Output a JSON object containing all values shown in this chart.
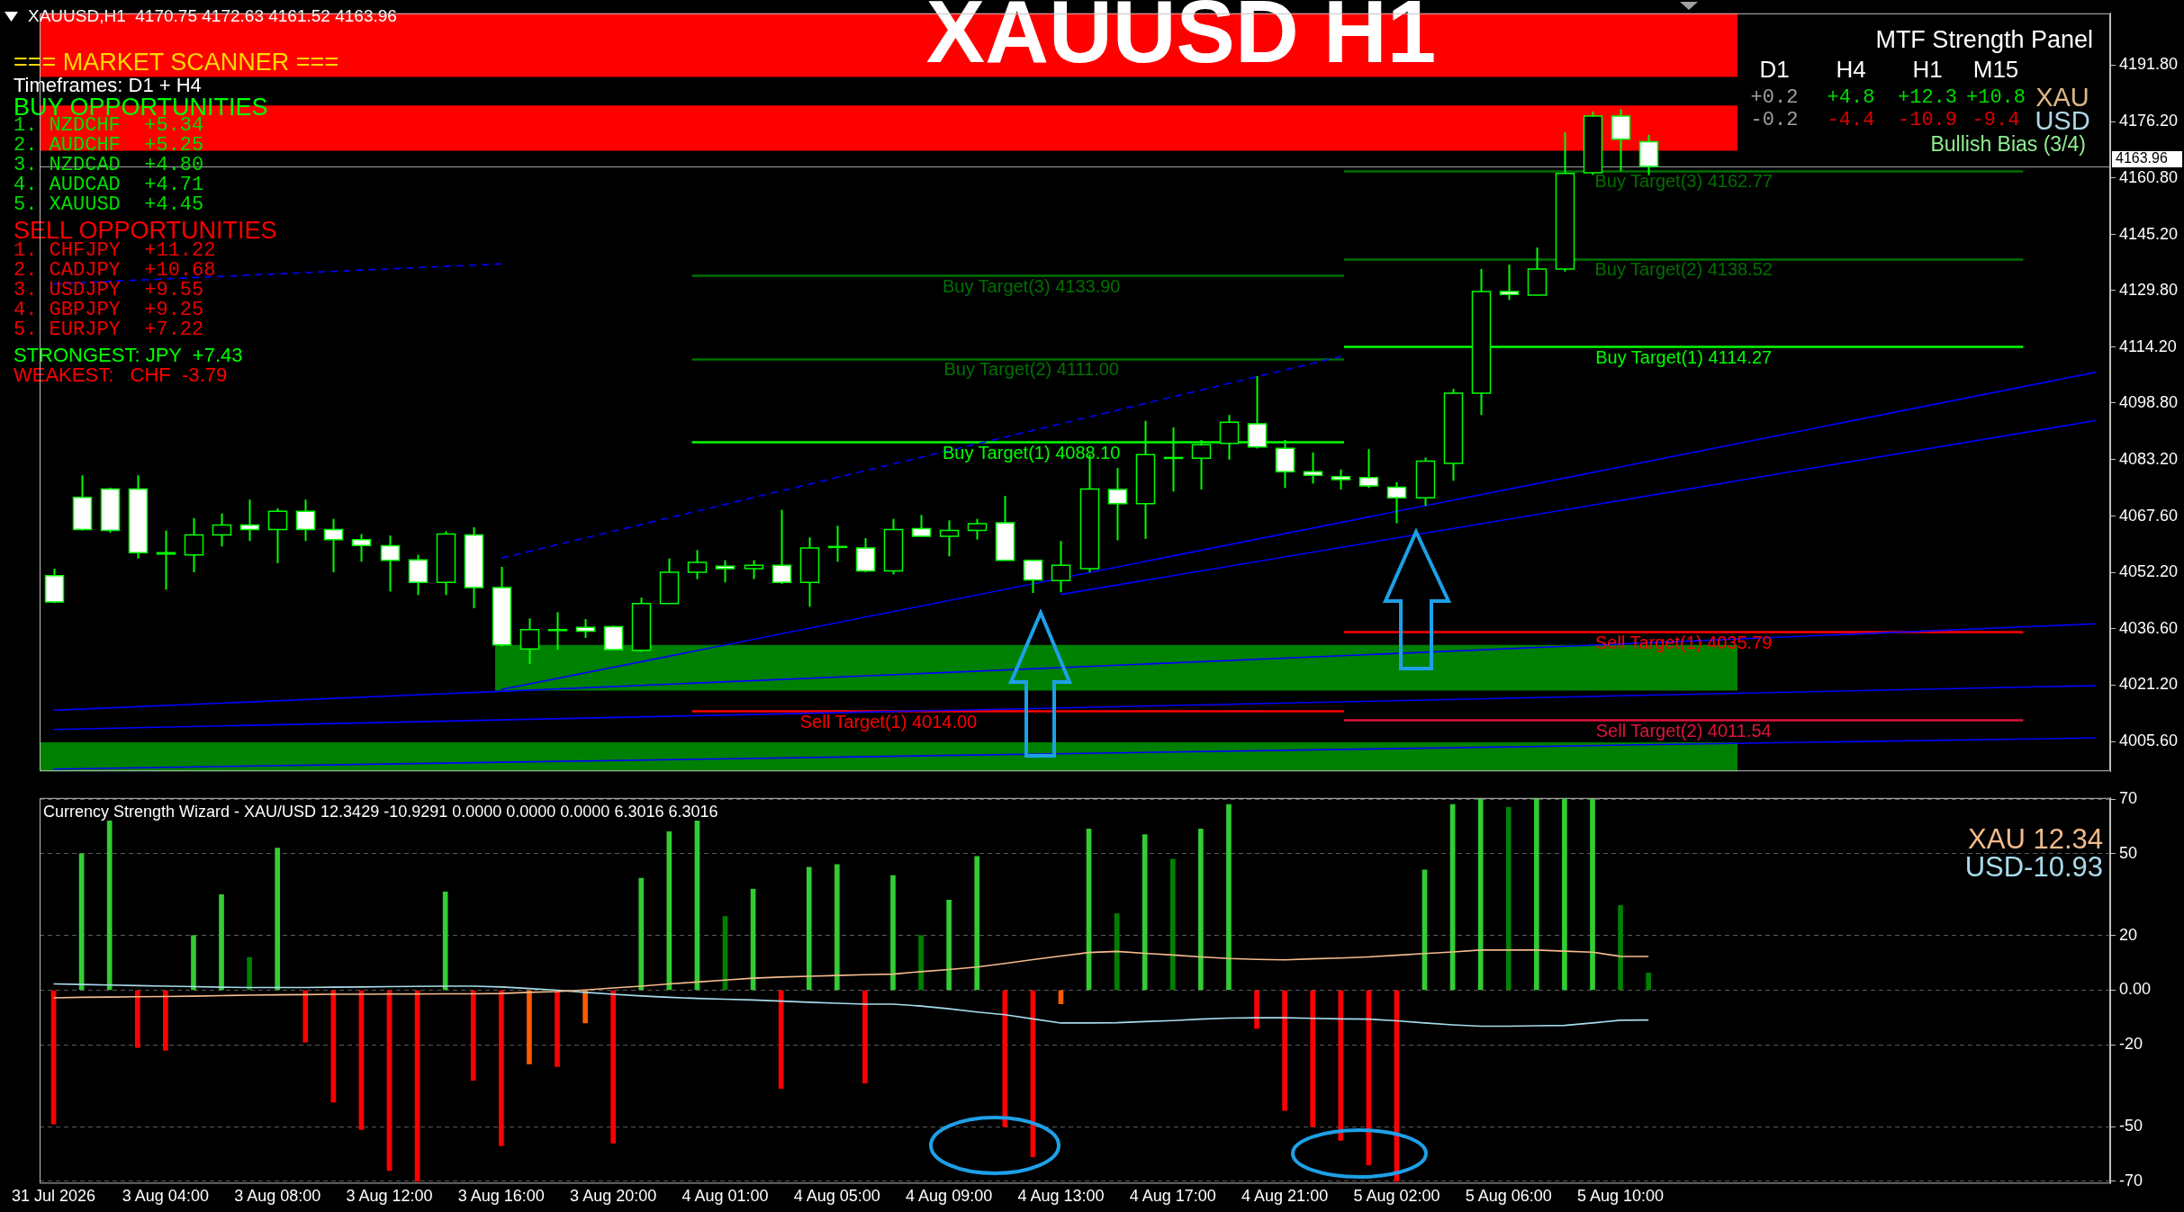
{
  "chart_data": [
    {
      "type": "candlestick",
      "title": "XAUUSD H1",
      "categories": [
        null,
        null,
        null,
        null,
        null,
        null,
        null,
        null,
        null,
        null,
        null,
        null,
        null,
        null,
        null,
        null,
        null,
        null,
        null,
        null,
        null,
        null,
        null,
        null,
        null,
        null,
        null,
        null,
        null,
        null,
        null,
        null,
        null,
        null,
        null,
        null,
        null,
        null,
        null,
        null,
        null,
        null,
        null,
        null,
        null,
        null,
        null,
        null,
        null,
        null,
        null,
        null,
        null,
        null,
        null,
        null,
        null,
        null,
        null,
        null,
        null,
        null,
        null,
        null,
        null,
        null,
        null,
        null,
        null,
        null,
        null,
        null,
        null,
        null
      ],
      "ohlc": [
        [
          4051.3,
          4053.2,
          4043.7,
          4044.0
        ],
        [
          4072.8,
          4078.9,
          4063.7,
          4064.0
        ],
        [
          4075.1,
          4075.5,
          4063.1,
          4063.7
        ],
        [
          4075.1,
          4078.9,
          4056.0,
          4057.6
        ],
        [
          4057.6,
          4063.7,
          4047.4,
          4057.2
        ],
        [
          4057.0,
          4067.1,
          4052.2,
          4062.5
        ],
        [
          4062.5,
          4068.4,
          4059.3,
          4065.2
        ],
        [
          4065.2,
          4072.2,
          4060.8,
          4064.0
        ],
        [
          4064.0,
          4069.8,
          4054.7,
          4069.0
        ],
        [
          4069.0,
          4072.2,
          4060.8,
          4064.0
        ],
        [
          4064.0,
          4066.9,
          4052.2,
          4061.2
        ],
        [
          4061.2,
          4062.7,
          4055.1,
          4059.6
        ],
        [
          4059.5,
          4062.3,
          4046.9,
          4055.5
        ],
        [
          4055.6,
          4057.0,
          4045.9,
          4049.4
        ],
        [
          4049.4,
          4063.5,
          4045.9,
          4062.7
        ],
        [
          4062.5,
          4064.6,
          4042.3,
          4048.0
        ],
        [
          4048.0,
          4053.7,
          4031.8,
          4032.2
        ],
        [
          4031.1,
          4039.5,
          4026.9,
          4036.4
        ],
        [
          4036.4,
          4041.2,
          4030.9,
          4036.2
        ],
        [
          4037.0,
          4039.3,
          4034.1,
          4036.0
        ],
        [
          4037.2,
          4037.5,
          4030.7,
          4030.9
        ],
        [
          4030.7,
          4045.2,
          4030.3,
          4043.6
        ],
        [
          4043.6,
          4056.0,
          4043.6,
          4052.2
        ],
        [
          4052.2,
          4058.3,
          4050.3,
          4054.9
        ],
        [
          4053.9,
          4055.5,
          4049.4,
          4053.2
        ],
        [
          4053.2,
          4055.5,
          4050.3,
          4054.1
        ],
        [
          4054.1,
          4069.4,
          4049.0,
          4049.4
        ],
        [
          4049.4,
          4061.8,
          4042.7,
          4058.9
        ],
        [
          4059.3,
          4065.0,
          4055.1,
          4059.1
        ],
        [
          4058.9,
          4061.6,
          4052.2,
          4052.6
        ],
        [
          4052.6,
          4066.9,
          4051.6,
          4064.0
        ],
        [
          4064.2,
          4068.0,
          4062.1,
          4062.1
        ],
        [
          4062.1,
          4066.5,
          4056.6,
          4063.7
        ],
        [
          4063.7,
          4066.9,
          4061.2,
          4065.6
        ],
        [
          4065.8,
          4073.2,
          4055.5,
          4055.5
        ],
        [
          4055.5,
          4055.5,
          4046.5,
          4050.1
        ],
        [
          4049.9,
          4060.8,
          4046.7,
          4054.1
        ],
        [
          4053.2,
          4084.6,
          4052.2,
          4075.1
        ],
        [
          4075.0,
          4080.9,
          4061.0,
          4071.1
        ],
        [
          4071.1,
          4093.9,
          4061.4,
          4084.6
        ],
        [
          4083.8,
          4092.1,
          4074.4,
          4083.6
        ],
        [
          4083.6,
          4088.6,
          4075.0,
          4087.3
        ],
        [
          4087.7,
          4095.5,
          4083.2,
          4093.5
        ],
        [
          4093.1,
          4106.2,
          4086.3,
          4086.7
        ],
        [
          4086.3,
          4088.6,
          4075.4,
          4079.9
        ],
        [
          4079.9,
          4085.2,
          4076.6,
          4078.9
        ],
        [
          4078.5,
          4080.5,
          4075.0,
          4077.7
        ],
        [
          4078.3,
          4086.1,
          4075.4,
          4076.0
        ],
        [
          4075.6,
          4077.0,
          4065.7,
          4072.7
        ],
        [
          4072.7,
          4083.8,
          4070.5,
          4082.8
        ],
        [
          4082.2,
          4102.7,
          4077.4,
          4101.5
        ],
        [
          4101.5,
          4135.7,
          4095.5,
          4129.5
        ],
        [
          4129.5,
          4136.9,
          4127.2,
          4128.7
        ],
        [
          4128.5,
          4141.6,
          4128.5,
          4135.7
        ],
        [
          4135.7,
          4173.3,
          4135.0,
          4162.0
        ],
        [
          4162.2,
          4179.1,
          4161.6,
          4177.8
        ],
        [
          4177.8,
          4179.7,
          4162.6,
          4171.4
        ],
        [
          4170.75,
          4172.63,
          4161.52,
          4163.96
        ],
        null,
        null,
        null,
        null,
        null,
        null,
        null,
        null,
        null,
        null,
        null,
        null,
        null,
        null,
        null,
        null
      ],
      "series": [
        {
          "type": "line",
          "color": "#0000ff",
          "line_style": "dashed",
          "values": [
            4131.6,
            null,
            null,
            null,
            null,
            null,
            null,
            null,
            null,
            null,
            null,
            null,
            null,
            null,
            null,
            null,
            4137.1,
            null,
            null,
            null,
            null,
            null,
            null,
            null,
            null,
            null,
            null,
            null,
            null,
            null,
            null,
            null,
            null,
            null,
            null,
            null,
            null,
            null,
            null,
            null,
            null,
            null,
            null,
            null,
            null,
            null,
            null,
            null,
            null,
            null,
            null,
            null,
            null,
            null,
            null,
            null,
            null,
            null,
            null,
            null,
            null,
            null,
            null,
            null,
            null,
            null,
            null,
            null,
            null,
            null,
            null,
            null,
            null,
            null
          ]
        },
        {
          "type": "line",
          "color": "#0000ff",
          "line_style": "dashed",
          "values": [
            null,
            null,
            null,
            null,
            null,
            null,
            null,
            null,
            null,
            null,
            null,
            null,
            null,
            null,
            null,
            null,
            4056.1,
            null,
            null,
            null,
            null,
            null,
            null,
            null,
            null,
            null,
            null,
            null,
            null,
            null,
            null,
            null,
            null,
            null,
            null,
            null,
            null,
            null,
            null,
            null,
            null,
            null,
            null,
            null,
            null,
            null,
            4111.6,
            null,
            null,
            null,
            null,
            null,
            null,
            null,
            null,
            null,
            null,
            null,
            null,
            null,
            null,
            null,
            null,
            null,
            null,
            null,
            null,
            null,
            null,
            null,
            null,
            null,
            null,
            null
          ]
        },
        {
          "type": "line",
          "color": "#0000ff",
          "values": [
            null,
            null,
            null,
            null,
            null,
            null,
            null,
            null,
            null,
            null,
            null,
            null,
            null,
            null,
            null,
            null,
            4019.9,
            null,
            null,
            null,
            null,
            null,
            null,
            null,
            null,
            null,
            null,
            null,
            null,
            null,
            null,
            null,
            null,
            null,
            null,
            null,
            null,
            null,
            null,
            null,
            null,
            null,
            null,
            null,
            null,
            null,
            null,
            null,
            null,
            null,
            null,
            null,
            null,
            null,
            null,
            null,
            null,
            null,
            null,
            null,
            null,
            null,
            null,
            null,
            null,
            null,
            null,
            null,
            null,
            null,
            null,
            null,
            null,
            4107.3
          ]
        },
        {
          "type": "line",
          "color": "#0000ff",
          "values": [
            null,
            null,
            null,
            null,
            null,
            null,
            null,
            null,
            null,
            null,
            null,
            null,
            null,
            null,
            null,
            null,
            null,
            null,
            null,
            null,
            null,
            null,
            null,
            null,
            null,
            null,
            null,
            null,
            null,
            null,
            null,
            null,
            null,
            null,
            null,
            null,
            4046.1,
            null,
            null,
            null,
            null,
            null,
            null,
            null,
            null,
            null,
            null,
            null,
            null,
            null,
            null,
            null,
            null,
            null,
            null,
            null,
            null,
            null,
            null,
            null,
            null,
            null,
            null,
            null,
            null,
            null,
            null,
            null,
            null,
            null,
            null,
            null,
            null,
            4094.0
          ]
        },
        {
          "type": "line",
          "color": "#0000ff",
          "values": [
            4014.2,
            null,
            null,
            null,
            null,
            null,
            null,
            null,
            null,
            null,
            null,
            null,
            null,
            null,
            null,
            null,
            null,
            null,
            null,
            null,
            null,
            null,
            null,
            null,
            null,
            null,
            null,
            null,
            null,
            null,
            null,
            null,
            null,
            null,
            null,
            null,
            null,
            null,
            null,
            null,
            null,
            null,
            null,
            null,
            null,
            null,
            null,
            null,
            null,
            null,
            null,
            null,
            null,
            null,
            null,
            null,
            null,
            null,
            null,
            null,
            null,
            null,
            null,
            null,
            null,
            null,
            null,
            null,
            null,
            null,
            null,
            null,
            null,
            4038.0
          ]
        },
        {
          "type": "line",
          "color": "#0000ff",
          "values": [
            4008.9,
            null,
            null,
            null,
            null,
            null,
            null,
            null,
            null,
            null,
            null,
            null,
            null,
            null,
            null,
            null,
            null,
            null,
            null,
            null,
            null,
            null,
            null,
            null,
            null,
            null,
            null,
            null,
            null,
            null,
            null,
            null,
            null,
            null,
            null,
            null,
            null,
            null,
            null,
            null,
            null,
            null,
            null,
            null,
            null,
            null,
            null,
            null,
            null,
            null,
            null,
            null,
            null,
            null,
            null,
            null,
            null,
            null,
            null,
            null,
            null,
            null,
            null,
            null,
            null,
            null,
            null,
            null,
            null,
            null,
            null,
            null,
            null,
            4021.0
          ]
        },
        {
          "type": "line",
          "color": "#0000ff",
          "values": [
            3998.0,
            null,
            null,
            null,
            null,
            null,
            null,
            null,
            null,
            null,
            null,
            null,
            null,
            null,
            null,
            null,
            null,
            null,
            null,
            null,
            null,
            null,
            null,
            null,
            null,
            null,
            null,
            null,
            null,
            null,
            null,
            null,
            null,
            null,
            null,
            null,
            null,
            null,
            null,
            null,
            null,
            null,
            null,
            null,
            null,
            null,
            null,
            null,
            null,
            null,
            null,
            null,
            null,
            null,
            null,
            null,
            null,
            null,
            null,
            null,
            null,
            null,
            null,
            null,
            null,
            null,
            null,
            null,
            null,
            null,
            null,
            null,
            null,
            4006.6
          ]
        }
      ],
      "ylim": [
        3997.4,
        4206.1
      ],
      "yticks": [
        {
          "value": 4191.8,
          "label": "4191.80"
        },
        {
          "value": 4176.2,
          "label": "4176.20"
        },
        {
          "value": 4160.8,
          "label": "4160.80"
        },
        {
          "value": 4145.2,
          "label": "4145.20"
        },
        {
          "value": 4129.8,
          "label": "4129.80"
        },
        {
          "value": 4114.2,
          "label": "4114.20"
        },
        {
          "value": 4098.8,
          "label": "4098.80"
        },
        {
          "value": 4083.2,
          "label": "4083.20"
        },
        {
          "value": 4067.6,
          "label": "4067.60"
        },
        {
          "value": 4052.2,
          "label": "4052.20"
        },
        {
          "value": 4036.6,
          "label": "4036.60"
        },
        {
          "value": 4021.2,
          "label": "4021.20"
        },
        {
          "value": 4005.6,
          "label": "4005.60"
        }
      ],
      "tick_labels": "y",
      "grid": false,
      "legend": false,
      "marker": "none",
      "bands": [
        {
          "axis": "y",
          "from": 4188.6,
          "to": 4206.1,
          "color": "#ff0000"
        },
        {
          "axis": "y",
          "from": 4168.3,
          "to": 4180.7,
          "color": "#ff0000"
        },
        {
          "axis": "y",
          "from": 4019.6,
          "to": 4032.2,
          "color": "#008000"
        },
        {
          "axis": "y",
          "from": 3997.4,
          "to": 4005.4,
          "color": "#008000"
        }
      ],
      "ref_lines": [
        {
          "axis": "y",
          "value": 4133.9,
          "label": "Buy Target(3) 4133.90",
          "color": "#007000"
        },
        {
          "axis": "y",
          "value": 4111.0,
          "label": "Buy Target(2) 4111.00",
          "color": "#007000"
        },
        {
          "axis": "y",
          "value": 4088.1,
          "label": "Buy Target(1) 4088.10",
          "color": "#00ff00"
        },
        {
          "axis": "y",
          "value": 4014.0,
          "label": "Sell Target(1) 4014.00",
          "color": "#ff0000"
        },
        {
          "axis": "y",
          "value": 4162.77,
          "label": "Buy Target(3) 4162.77",
          "color": "#007000"
        },
        {
          "axis": "y",
          "value": 4138.52,
          "label": "Buy Target(2) 4138.52",
          "color": "#007000"
        },
        {
          "axis": "y",
          "value": 4114.27,
          "label": "Buy Target(1) 4114.27",
          "color": "#00ff00"
        },
        {
          "axis": "y",
          "value": 4035.79,
          "label": "Sell Target(1) 4035.79",
          "color": "#ff0000"
        },
        {
          "axis": "y",
          "value": 4011.54,
          "label": "Sell Target(2) 4011.54",
          "color": "#dc143c"
        },
        {
          "axis": "y",
          "value": 4163.96,
          "label": "4163.96",
          "color": "#a0a0a0"
        }
      ],
      "annotations": [
        "XAUUSD,H1  4170.75 4172.63 4161.52 4163.96",
        "=== MARKET SCANNER ===",
        "Timeframes: D1 + H4",
        "BUY OPPORTUNITIES",
        "1. NZDCHF  +5.34",
        "2. AUDCHF  +5.25",
        "3. NZDCAD  +4.80",
        "4. AUDCAD  +4.71",
        "5. XAUUSD  +4.45",
        "SELL OPPORTUNITIES",
        "1. CHFJPY  +11.22",
        "2. CADJPY  +10.68",
        "3. USDJPY  +9.55",
        "4. GBPJPY  +9.25",
        "5. EURJPY  +7.22",
        "STRONGEST: JPY  +7.43",
        "WEAKEST:   CHF  -3.79",
        "MTF Strength Panel",
        "D1",
        "H4",
        "H1",
        "M15",
        "+0.2",
        "+4.8",
        "+12.3",
        "+10.8",
        "XAU",
        "-0.2",
        "-4.4",
        "-10.9",
        "-9.4",
        "USD",
        "Bullish Bias (3/4)"
      ]
    },
    {
      "type": "bar",
      "title": "Currency Strength Wizard - XAU/USD 12.3429 -10.9291 0.0000 0.0000 0.0000 6.3016 6.3016",
      "categories": [
        "31 Jul 2026",
        null,
        null,
        null,
        "3 Aug 04:00",
        null,
        null,
        null,
        "3 Aug 08:00",
        null,
        null,
        null,
        "3 Aug 12:00",
        null,
        null,
        null,
        "3 Aug 16:00",
        null,
        null,
        null,
        "3 Aug 20:00",
        null,
        null,
        null,
        "4 Aug 01:00",
        null,
        null,
        null,
        "4 Aug 05:00",
        null,
        null,
        null,
        "4 Aug 09:00",
        null,
        null,
        null,
        "4 Aug 13:00",
        null,
        null,
        null,
        "4 Aug 17:00",
        null,
        null,
        null,
        "4 Aug 21:00",
        null,
        null,
        null,
        "5 Aug 02:00",
        null,
        null,
        null,
        "5 Aug 06:00",
        null,
        null,
        null,
        "5 Aug 10:00",
        null,
        null,
        null,
        null,
        null,
        null,
        null,
        null,
        null,
        null,
        null,
        null,
        null,
        null,
        null,
        null,
        null
      ],
      "series": [
        {
          "type": "bar",
          "values": [
            -49,
            50,
            62,
            -21,
            -22,
            20,
            35,
            12,
            52,
            -19,
            -41,
            -51,
            -66,
            -70,
            36,
            -33,
            -57,
            -27,
            -28,
            -12,
            -56,
            41,
            58,
            62,
            27,
            37,
            -36,
            45,
            46,
            -34,
            42,
            20,
            33,
            49,
            -50,
            -61,
            -5,
            59,
            28,
            57,
            48,
            59,
            68,
            -14,
            -44,
            -50,
            -55,
            -64,
            -70,
            44,
            68,
            70,
            67,
            70,
            70,
            70,
            31,
            6.3,
            null,
            null,
            null,
            null,
            null,
            null,
            null,
            null,
            null,
            null,
            null,
            null,
            null,
            null,
            null,
            null
          ],
          "colors": [
            "#ff0000",
            "#32cd32",
            "#32cd32",
            "#ff0000",
            "#ff0000",
            "#32cd32",
            "#32cd32",
            "#008000",
            "#32cd32",
            "#ff0000",
            "#ff0000",
            "#ff0000",
            "#ff0000",
            "#ff0000",
            "#32cd32",
            "#ff0000",
            "#ff0000",
            "#ff5a00",
            "#ff0000",
            "#ff5a00",
            "#ff0000",
            "#32cd32",
            "#32cd32",
            "#32cd32",
            "#008000",
            "#32cd32",
            "#ff0000",
            "#32cd32",
            "#32cd32",
            "#ff0000",
            "#32cd32",
            "#008000",
            "#32cd32",
            "#32cd32",
            "#ff0000",
            "#ff0000",
            "#ff5a00",
            "#32cd32",
            "#008000",
            "#32cd32",
            "#008000",
            "#32cd32",
            "#32cd32",
            "#ff0000",
            "#ff0000",
            "#ff0000",
            "#ff0000",
            "#ff0000",
            "#ff0000",
            "#32cd32",
            "#32cd32",
            "#32cd32",
            "#008000",
            "#32cd32",
            "#32cd32",
            "#32cd32",
            "#008000",
            "#008000",
            null,
            null,
            null,
            null,
            null,
            null,
            null,
            null,
            null,
            null,
            null,
            null,
            null,
            null,
            null,
            null
          ]
        },
        {
          "type": "line",
          "name": "XAU 12.34",
          "color": "#f4bb8c",
          "values": [
            -2.8,
            -2.6,
            -2.5,
            -2.4,
            -2.3,
            -2.2,
            -2.0,
            -1.8,
            -1.7,
            -1.6,
            -1.5,
            -1.5,
            -1.4,
            -1.4,
            -1.3,
            -1.3,
            -1.2,
            -0.8,
            -0.5,
            0.1,
            0.8,
            1.5,
            2.3,
            3.0,
            3.7,
            4.4,
            4.8,
            5.1,
            5.4,
            5.7,
            5.9,
            6.8,
            7.6,
            8.5,
            9.8,
            11.2,
            12.5,
            13.8,
            14.2,
            13.5,
            12.9,
            12.2,
            11.6,
            11.3,
            11.1,
            11.5,
            11.8,
            12.2,
            12.8,
            13.4,
            14.0,
            14.7,
            14.7,
            14.7,
            14.3,
            13.9,
            12.4,
            12.34,
            null,
            null,
            null,
            null,
            null,
            null,
            null,
            null,
            null,
            null,
            null,
            null,
            null,
            null,
            null,
            null
          ]
        },
        {
          "type": "line",
          "name": "USD-10.93",
          "color": "#a8dcec",
          "values": [
            2.3,
            2.1,
            1.9,
            1.7,
            1.5,
            1.3,
            1.1,
            1.0,
            1.0,
            1.0,
            1.1,
            1.2,
            1.3,
            1.4,
            1.5,
            1.5,
            1.2,
            0.6,
            0.0,
            -0.8,
            -1.5,
            -2.1,
            -2.6,
            -3.0,
            -3.3,
            -3.6,
            -4.0,
            -4.4,
            -4.8,
            -5.1,
            -5.1,
            -5.8,
            -6.8,
            -8.0,
            -9.0,
            -10.5,
            -12.0,
            -12.0,
            -11.9,
            -11.5,
            -11.1,
            -10.6,
            -10.2,
            -10.1,
            -10.1,
            -10.3,
            -10.5,
            -10.6,
            -11.2,
            -12.0,
            -12.7,
            -13.2,
            -13.2,
            -13.0,
            -12.9,
            -12.0,
            -11.0,
            -10.93,
            null,
            null,
            null,
            null,
            null,
            null,
            null,
            null,
            null,
            null,
            null,
            null,
            null,
            null,
            null,
            null
          ]
        }
      ],
      "ylim": [
        -70.8,
        70.4
      ],
      "yticks": [
        70,
        50,
        20,
        {
          "value": 0,
          "label": "0.00"
        },
        -20,
        -50,
        -70
      ],
      "grid": "y",
      "legend": "top right",
      "marker": "none"
    }
  ]
}
